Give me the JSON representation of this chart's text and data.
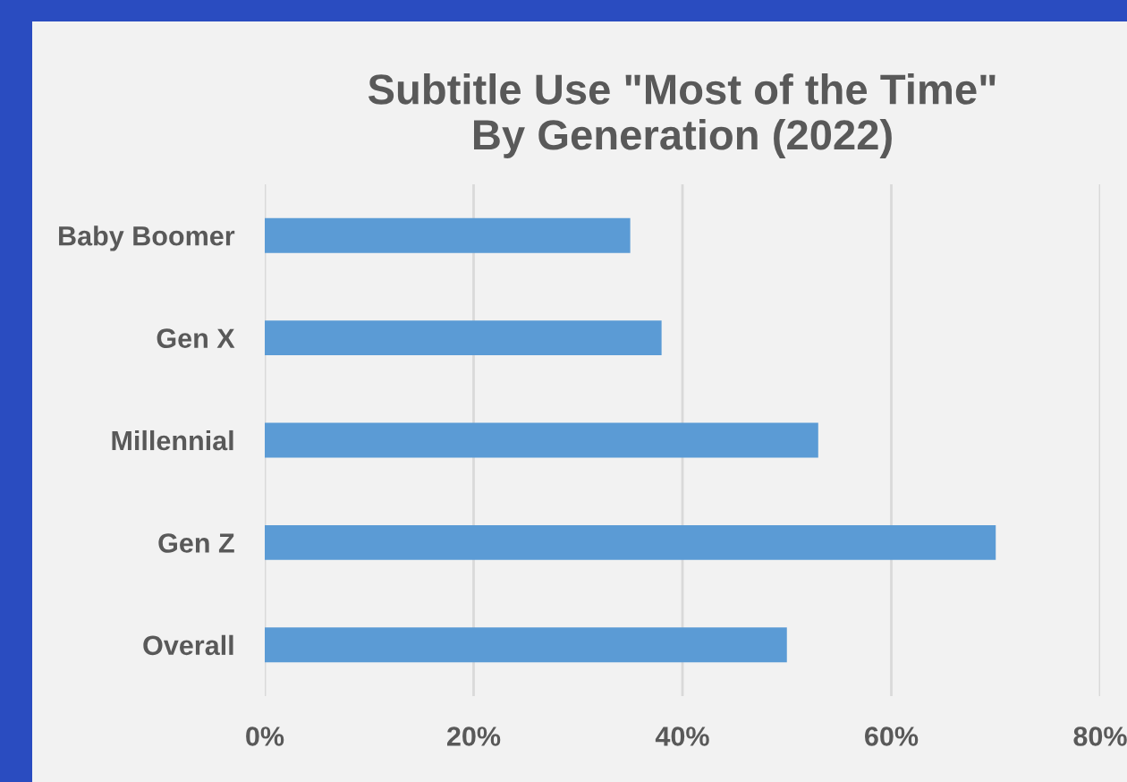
{
  "chart_data": {
    "type": "bar",
    "orientation": "horizontal",
    "title": "Subtitle Use \"Most of the Time\"\nBy Generation (2022)",
    "categories": [
      "Baby Boomer",
      "Gen X",
      "Millennial",
      "Gen Z",
      "Overall"
    ],
    "values": [
      35,
      38,
      53,
      70,
      50
    ],
    "color": "#5b9bd5",
    "xlim": [
      0,
      80
    ],
    "xticks": [
      {
        "value": 0,
        "label": "0%"
      },
      {
        "value": 20,
        "label": "20%"
      },
      {
        "value": 40,
        "label": "40%"
      },
      {
        "value": 60,
        "label": "60%"
      },
      {
        "value": 80,
        "label": "80%"
      }
    ],
    "grid": "x"
  }
}
